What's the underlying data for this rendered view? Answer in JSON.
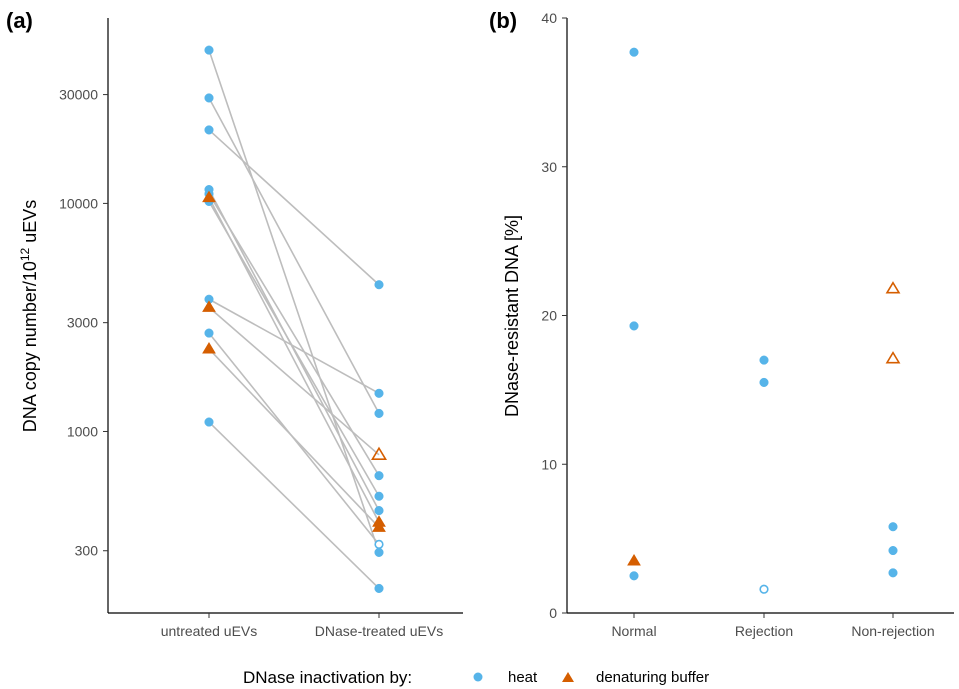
{
  "colors": {
    "heat": "#56b4e9",
    "buffer": "#d55e00",
    "line": "#bdbdbd",
    "axis": "#000000"
  },
  "legend": {
    "title": "DNase inactivation by:",
    "items": [
      {
        "label": "heat",
        "shape": "circle"
      },
      {
        "label": "denaturing buffer",
        "shape": "triangle"
      }
    ]
  },
  "chart_data": [
    {
      "panel": "(a)",
      "type": "scatter",
      "ylabel_main": "DNA copy number/10",
      "ylabel_sup": "12",
      "ylabel_tail": " uEVs",
      "yscale": "log",
      "ylim": [
        160,
        65000
      ],
      "categories": [
        "untreated uEVs",
        "DNase-treated uEVs"
      ],
      "yticks": [
        1000,
        3000,
        10000,
        30000
      ],
      "yticks_extra": [
        300
      ],
      "ytick_labels": [
        "300",
        "1000",
        "3000",
        "10000",
        "30000"
      ],
      "pairs": [
        {
          "before": 47000,
          "after": 295,
          "method": "heat",
          "hollow": false
        },
        {
          "before": 29000,
          "after": 1200,
          "method": "heat",
          "hollow": false
        },
        {
          "before": 21000,
          "after": 4400,
          "method": "heat",
          "hollow": false
        },
        {
          "before": 11500,
          "after": 450,
          "method": "heat",
          "hollow": false
        },
        {
          "before": 11000,
          "after": 640,
          "method": "heat",
          "hollow": false
        },
        {
          "before": 10200,
          "after": 520,
          "method": "heat",
          "hollow": false
        },
        {
          "before": 10600,
          "after": 400,
          "method": "buffer",
          "hollow": false
        },
        {
          "before": 3800,
          "after": 1470,
          "method": "heat",
          "hollow": false
        },
        {
          "before": 3500,
          "after": 790,
          "method": "buffer",
          "hollow": true
        },
        {
          "before": 2700,
          "after": 320,
          "method": "heat",
          "hollow": true
        },
        {
          "before": 2300,
          "after": 380,
          "method": "buffer",
          "hollow": false
        },
        {
          "before": 1100,
          "after": 205,
          "method": "heat",
          "hollow": false
        }
      ]
    },
    {
      "panel": "(b)",
      "type": "scatter",
      "ylabel": "DNase-resistant DNA [%]",
      "ylim": [
        0,
        40
      ],
      "yticks": [
        0,
        10,
        20,
        30,
        40
      ],
      "ytick_labels": [
        "0",
        "10",
        "20",
        "30",
        "40"
      ],
      "categories": [
        "Normal",
        "Rejection",
        "Non-rejection"
      ],
      "points": [
        {
          "category": "Normal",
          "y": 37.7,
          "method": "heat",
          "hollow": false
        },
        {
          "category": "Normal",
          "y": 19.3,
          "method": "heat",
          "hollow": false
        },
        {
          "category": "Normal",
          "y": 3.5,
          "method": "buffer",
          "hollow": false
        },
        {
          "category": "Normal",
          "y": 2.5,
          "method": "heat",
          "hollow": false
        },
        {
          "category": "Rejection",
          "y": 17.0,
          "method": "heat",
          "hollow": false
        },
        {
          "category": "Rejection",
          "y": 15.5,
          "method": "heat",
          "hollow": false
        },
        {
          "category": "Rejection",
          "y": 1.6,
          "method": "heat",
          "hollow": true
        },
        {
          "category": "Non-rejection",
          "y": 21.8,
          "method": "buffer",
          "hollow": true
        },
        {
          "category": "Non-rejection",
          "y": 17.1,
          "method": "buffer",
          "hollow": true
        },
        {
          "category": "Non-rejection",
          "y": 5.8,
          "method": "heat",
          "hollow": false
        },
        {
          "category": "Non-rejection",
          "y": 4.2,
          "method": "heat",
          "hollow": false
        },
        {
          "category": "Non-rejection",
          "y": 2.7,
          "method": "heat",
          "hollow": false
        }
      ]
    }
  ]
}
